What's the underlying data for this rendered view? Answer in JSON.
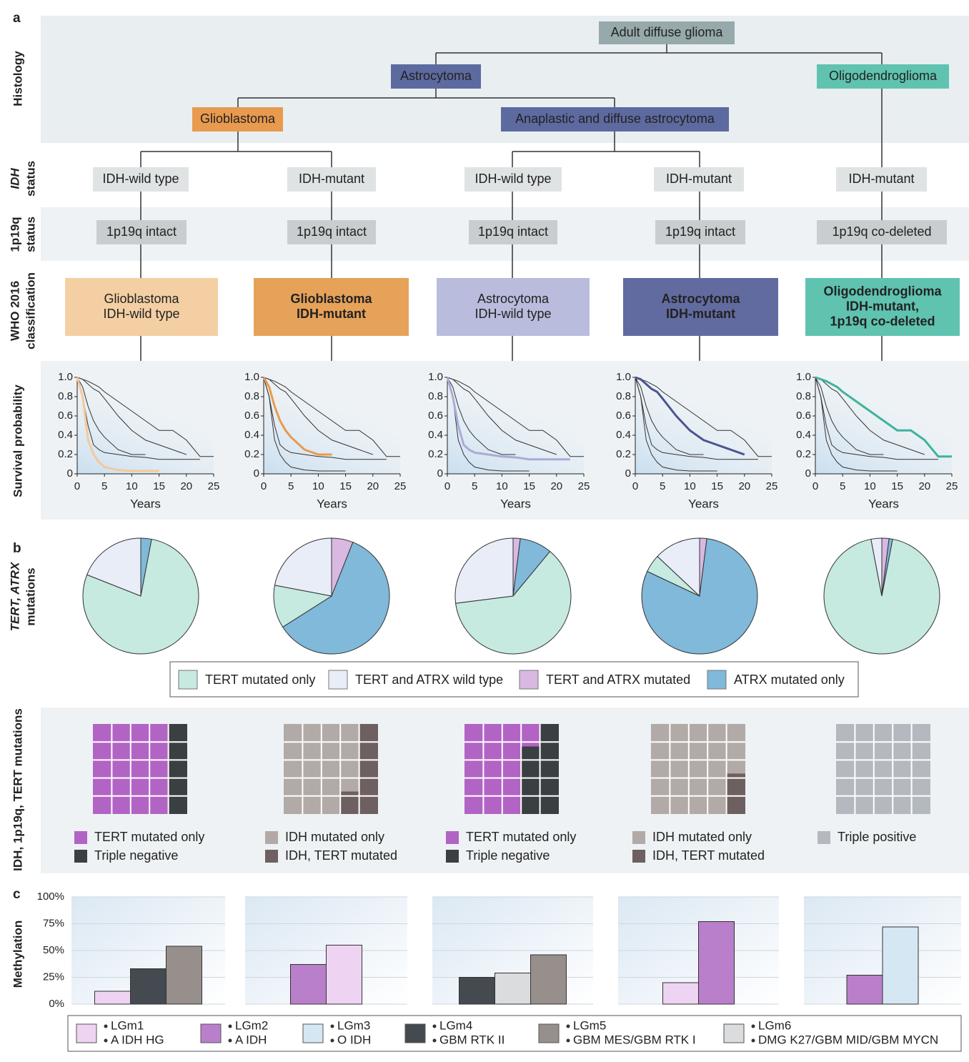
{
  "panel_labels": [
    "a",
    "b",
    "c"
  ],
  "row_labels": {
    "histology": "Histology",
    "idh_status": [
      "IDH",
      "status"
    ],
    "p19q_status": [
      "1p19q",
      "status"
    ],
    "who": [
      "WHO 2016",
      "classification"
    ],
    "survival": "Survival probability",
    "tert_atrx": [
      "TERT, ATRX",
      "mutations"
    ],
    "idh_1p19q_tert": "IDH, 1p19q, TERT mutations",
    "methylation": "Methylation"
  },
  "tree": {
    "root": "Adult diffuse glioma",
    "histology": [
      "Astrocytoma",
      "Oligodendroglioma",
      "Glioblastoma",
      "Anaplastic and diffuse astrocytoma"
    ],
    "idh_status": [
      "IDH-wild type",
      "IDH-mutant",
      "IDH-wild type",
      "IDH-mutant",
      "IDH-mutant"
    ],
    "p19q_status": [
      "1p19q intact",
      "1p19q intact",
      "1p19q intact",
      "1p19q intact",
      "1p19q co-deleted"
    ],
    "who_2016": [
      [
        "Glioblastoma",
        "IDH-wild type"
      ],
      [
        "Glioblastoma",
        "IDH-mutant"
      ],
      [
        "Astrocytoma",
        "IDH-wild type"
      ],
      [
        "Astrocytoma",
        "IDH-mutant"
      ],
      [
        "Oligodendroglioma",
        "IDH-mutant,",
        "1p19q co-deleted"
      ]
    ]
  },
  "pie_legend": {
    "names": [
      "TERT mutated only",
      "TERT and ATRX wild type",
      "TERT and ATRX mutated",
      "ATRX mutated only"
    ],
    "colors": [
      "#c6e9e0",
      "#e9edf7",
      "#d9b8e2",
      "#80b9d9"
    ]
  },
  "methylation_legend": [
    {
      "name": "LGm1",
      "label": "A IDH HG",
      "color": "#efd3f2"
    },
    {
      "name": "LGm2",
      "label": "A IDH",
      "color": "#b97fcb"
    },
    {
      "name": "LGm3",
      "label": "O IDH",
      "color": "#d5e7f2"
    },
    {
      "name": "LGm4",
      "label": "GBM RTK II",
      "color": "#454a50"
    },
    {
      "name": "LGm5",
      "label": "GBM MES/GBM RTK I",
      "color": "#978f8b"
    },
    {
      "name": "LGm6",
      "label": "DMG K27/GBM MID/GBM MYCN",
      "color": "#dadcdd"
    }
  ],
  "chart_data": [
    {
      "type": "line",
      "x": [
        0,
        1,
        2,
        3,
        4,
        5,
        7.5,
        10,
        12.5,
        15,
        17.5,
        20,
        22.5,
        25
      ],
      "xlim": [
        0,
        25
      ],
      "xticks": [
        0,
        5,
        10,
        15,
        20,
        25
      ],
      "ylim": [
        0,
        1
      ],
      "yticks": [
        0,
        0.2,
        0.4,
        0.6,
        0.8,
        {
          "value": 1,
          "label": "1.0"
        }
      ],
      "xlabel": "Years",
      "series": [
        {
          "color": "#f5c89a",
          "width": 3,
          "values": [
            1,
            0.8,
            0.35,
            0.2,
            0.12,
            0.07,
            0.04,
            0.03,
            0.03,
            0.03,
            null,
            null,
            null,
            null
          ]
        },
        {
          "color": "#333333",
          "width": 1,
          "values": [
            1,
            0.9,
            0.7,
            0.55,
            0.45,
            0.38,
            0.25,
            0.2,
            0.2,
            null,
            null,
            null,
            null,
            null
          ]
        },
        {
          "color": "#333333",
          "width": 1,
          "values": [
            1,
            0.8,
            0.5,
            0.3,
            0.25,
            0.22,
            0.2,
            0.18,
            0.17,
            0.15,
            0.15,
            0.15,
            0.15,
            null
          ]
        },
        {
          "color": "#333333",
          "width": 1,
          "values": [
            1,
            0.98,
            0.93,
            0.88,
            0.85,
            0.78,
            0.6,
            0.45,
            0.35,
            0.3,
            0.25,
            0.2,
            null,
            null
          ]
        },
        {
          "color": "#333333",
          "width": 1,
          "values": [
            1,
            0.98,
            0.96,
            0.93,
            0.9,
            0.85,
            0.75,
            0.65,
            0.55,
            0.45,
            0.45,
            0.35,
            0.18,
            0.18
          ]
        }
      ]
    },
    {
      "type": "line",
      "x": [
        0,
        1,
        2,
        3,
        4,
        5,
        7.5,
        10,
        12.5,
        15,
        17.5,
        20,
        22.5,
        25
      ],
      "xlim": [
        0,
        25
      ],
      "xticks": [
        0,
        5,
        10,
        15,
        20,
        25
      ],
      "ylim": [
        0,
        1
      ],
      "yticks": [
        0,
        0.2,
        0.4,
        0.6,
        0.8,
        {
          "value": 1,
          "label": "1.0"
        }
      ],
      "xlabel": "Years",
      "series": [
        {
          "color": "#333333",
          "width": 1,
          "values": [
            1,
            0.8,
            0.35,
            0.2,
            0.12,
            0.07,
            0.04,
            0.03,
            0.03,
            0.03,
            null,
            null,
            null,
            null
          ]
        },
        {
          "color": "#e89a4e",
          "width": 3,
          "values": [
            1,
            0.9,
            0.7,
            0.55,
            0.45,
            0.38,
            0.25,
            0.2,
            0.2,
            null,
            null,
            null,
            null,
            null
          ]
        },
        {
          "color": "#333333",
          "width": 1,
          "values": [
            1,
            0.8,
            0.5,
            0.3,
            0.25,
            0.22,
            0.2,
            0.18,
            0.17,
            0.15,
            0.15,
            0.15,
            0.15,
            null
          ]
        },
        {
          "color": "#333333",
          "width": 1,
          "values": [
            1,
            0.98,
            0.93,
            0.88,
            0.85,
            0.78,
            0.6,
            0.45,
            0.35,
            0.3,
            0.25,
            0.2,
            null,
            null
          ]
        },
        {
          "color": "#333333",
          "width": 1,
          "values": [
            1,
            0.98,
            0.96,
            0.93,
            0.9,
            0.85,
            0.75,
            0.65,
            0.55,
            0.45,
            0.45,
            0.35,
            0.18,
            0.18
          ]
        }
      ]
    },
    {
      "type": "line",
      "x": [
        0,
        1,
        2,
        3,
        4,
        5,
        7.5,
        10,
        12.5,
        15,
        17.5,
        20,
        22.5,
        25
      ],
      "xlim": [
        0,
        25
      ],
      "xticks": [
        0,
        5,
        10,
        15,
        20,
        25
      ],
      "ylim": [
        0,
        1
      ],
      "yticks": [
        0,
        0.2,
        0.4,
        0.6,
        0.8,
        {
          "value": 1,
          "label": "1.0"
        }
      ],
      "xlabel": "Years",
      "series": [
        {
          "color": "#333333",
          "width": 1,
          "values": [
            1,
            0.8,
            0.35,
            0.2,
            0.12,
            0.07,
            0.04,
            0.03,
            0.03,
            0.03,
            null,
            null,
            null,
            null
          ]
        },
        {
          "color": "#333333",
          "width": 1,
          "values": [
            1,
            0.9,
            0.7,
            0.55,
            0.45,
            0.38,
            0.25,
            0.2,
            0.2,
            null,
            null,
            null,
            null,
            null
          ]
        },
        {
          "color": "#a9acd6",
          "width": 3,
          "values": [
            1,
            0.8,
            0.5,
            0.3,
            0.25,
            0.22,
            0.2,
            0.18,
            0.17,
            0.15,
            0.15,
            0.15,
            0.15,
            null
          ]
        },
        {
          "color": "#333333",
          "width": 1,
          "values": [
            1,
            0.98,
            0.93,
            0.88,
            0.85,
            0.78,
            0.6,
            0.45,
            0.35,
            0.3,
            0.25,
            0.2,
            null,
            null
          ]
        },
        {
          "color": "#333333",
          "width": 1,
          "values": [
            1,
            0.98,
            0.96,
            0.93,
            0.9,
            0.85,
            0.75,
            0.65,
            0.55,
            0.45,
            0.45,
            0.35,
            0.18,
            0.18
          ]
        }
      ]
    },
    {
      "type": "line",
      "x": [
        0,
        1,
        2,
        3,
        4,
        5,
        7.5,
        10,
        12.5,
        15,
        17.5,
        20,
        22.5,
        25
      ],
      "xlim": [
        0,
        25
      ],
      "xticks": [
        0,
        5,
        10,
        15,
        20,
        25
      ],
      "ylim": [
        0,
        1
      ],
      "yticks": [
        0,
        0.2,
        0.4,
        0.6,
        0.8,
        {
          "value": 1,
          "label": "1.0"
        }
      ],
      "xlabel": "Years",
      "series": [
        {
          "color": "#333333",
          "width": 1,
          "values": [
            1,
            0.8,
            0.35,
            0.2,
            0.12,
            0.07,
            0.04,
            0.03,
            0.03,
            0.03,
            null,
            null,
            null,
            null
          ]
        },
        {
          "color": "#333333",
          "width": 1,
          "values": [
            1,
            0.9,
            0.7,
            0.55,
            0.45,
            0.38,
            0.25,
            0.2,
            0.2,
            null,
            null,
            null,
            null,
            null
          ]
        },
        {
          "color": "#333333",
          "width": 1,
          "values": [
            1,
            0.8,
            0.5,
            0.3,
            0.25,
            0.22,
            0.2,
            0.18,
            0.17,
            0.15,
            0.15,
            0.15,
            0.15,
            null
          ]
        },
        {
          "color": "#4b5590",
          "width": 3,
          "values": [
            1,
            0.98,
            0.93,
            0.88,
            0.85,
            0.78,
            0.6,
            0.45,
            0.35,
            0.3,
            0.25,
            0.2,
            null,
            null
          ]
        },
        {
          "color": "#333333",
          "width": 1,
          "values": [
            1,
            0.98,
            0.96,
            0.93,
            0.9,
            0.85,
            0.75,
            0.65,
            0.55,
            0.45,
            0.45,
            0.35,
            0.18,
            0.18
          ]
        }
      ]
    },
    {
      "type": "line",
      "x": [
        0,
        1,
        2,
        3,
        4,
        5,
        7.5,
        10,
        12.5,
        15,
        17.5,
        20,
        22.5,
        25
      ],
      "xlim": [
        0,
        25
      ],
      "xticks": [
        0,
        5,
        10,
        15,
        20,
        25
      ],
      "ylim": [
        0,
        1
      ],
      "yticks": [
        0,
        0.2,
        0.4,
        0.6,
        0.8,
        {
          "value": 1,
          "label": "1.0"
        }
      ],
      "xlabel": "Years",
      "series": [
        {
          "color": "#333333",
          "width": 1,
          "values": [
            1,
            0.8,
            0.35,
            0.2,
            0.12,
            0.07,
            0.04,
            0.03,
            0.03,
            0.03,
            null,
            null,
            null,
            null
          ]
        },
        {
          "color": "#333333",
          "width": 1,
          "values": [
            1,
            0.9,
            0.7,
            0.55,
            0.45,
            0.38,
            0.25,
            0.2,
            0.2,
            null,
            null,
            null,
            null,
            null
          ]
        },
        {
          "color": "#333333",
          "width": 1,
          "values": [
            1,
            0.8,
            0.5,
            0.3,
            0.25,
            0.22,
            0.2,
            0.18,
            0.17,
            0.15,
            0.15,
            0.15,
            0.15,
            null
          ]
        },
        {
          "color": "#333333",
          "width": 1,
          "values": [
            1,
            0.98,
            0.93,
            0.88,
            0.85,
            0.78,
            0.6,
            0.45,
            0.35,
            0.3,
            0.25,
            0.2,
            null,
            null
          ]
        },
        {
          "color": "#3fb39d",
          "width": 3,
          "values": [
            1,
            0.98,
            0.96,
            0.93,
            0.9,
            0.85,
            0.75,
            0.65,
            0.55,
            0.45,
            0.45,
            0.35,
            0.18,
            0.18
          ]
        }
      ]
    },
    {
      "type": "pie",
      "values": [
        78,
        19,
        0,
        3
      ]
    },
    {
      "type": "pie",
      "values": [
        12,
        22,
        6,
        60
      ]
    },
    {
      "type": "pie",
      "values": [
        62,
        27,
        2,
        9
      ]
    },
    {
      "type": "pie",
      "values": [
        5,
        13,
        2,
        80
      ]
    },
    {
      "type": "pie",
      "values": [
        94,
        3,
        2,
        1
      ]
    },
    {
      "type": "waffle",
      "categories": [
        "TERT mutated only",
        "Triple negative"
      ],
      "colors": [
        "#b264c4",
        "#3a3f42"
      ],
      "values": [
        80,
        20
      ]
    },
    {
      "type": "waffle",
      "categories": [
        "IDH mutated only",
        "IDH, TERT mutated"
      ],
      "colors": [
        "#b1aaa6",
        "#6e6060"
      ],
      "values": [
        75,
        25
      ]
    },
    {
      "type": "waffle",
      "categories": [
        "TERT mutated only",
        "Triple negative"
      ],
      "colors": [
        "#b264c4",
        "#3a3f42"
      ],
      "values": [
        65,
        35
      ]
    },
    {
      "type": "waffle",
      "categories": [
        "IDH mutated only",
        "IDH, TERT mutated"
      ],
      "colors": [
        "#b1aaa6",
        "#6e6060"
      ],
      "values": [
        91,
        9
      ]
    },
    {
      "type": "waffle",
      "categories": [
        "Triple positive"
      ],
      "colors": [
        "#b4b9bf"
      ],
      "values": [
        100
      ]
    },
    {
      "type": "bar",
      "values": [
        12,
        33,
        54
      ],
      "colors": [
        "#efd3f2",
        "#454a50",
        "#978f8b"
      ],
      "ylim": [
        0,
        100
      ],
      "yticks": [
        {
          "value": 0,
          "label": "0%"
        },
        {
          "value": 25,
          "label": "25%"
        },
        {
          "value": 50,
          "label": "50%"
        },
        {
          "value": 75,
          "label": "75%"
        },
        {
          "value": 100,
          "label": "100%"
        }
      ]
    },
    {
      "type": "bar",
      "values": [
        37,
        55
      ],
      "colors": [
        "#b97fcb",
        "#efd3f2"
      ],
      "ylim": [
        0,
        100
      ],
      "yticks": [
        0,
        25,
        50,
        75,
        100
      ]
    },
    {
      "type": "bar",
      "values": [
        25,
        29,
        46
      ],
      "colors": [
        "#454a50",
        "#dadcdd",
        "#978f8b"
      ],
      "ylim": [
        0,
        100
      ],
      "yticks": [
        0,
        25,
        50,
        75,
        100
      ]
    },
    {
      "type": "bar",
      "values": [
        20,
        77
      ],
      "colors": [
        "#efd3f2",
        "#b97fcb"
      ],
      "ylim": [
        0,
        100
      ],
      "yticks": [
        0,
        25,
        50,
        75,
        100
      ]
    },
    {
      "type": "bar",
      "values": [
        27,
        72
      ],
      "colors": [
        "#b97fcb",
        "#d5e7f2"
      ],
      "ylim": [
        0,
        100
      ],
      "yticks": [
        0,
        25,
        50,
        75,
        100
      ]
    }
  ]
}
